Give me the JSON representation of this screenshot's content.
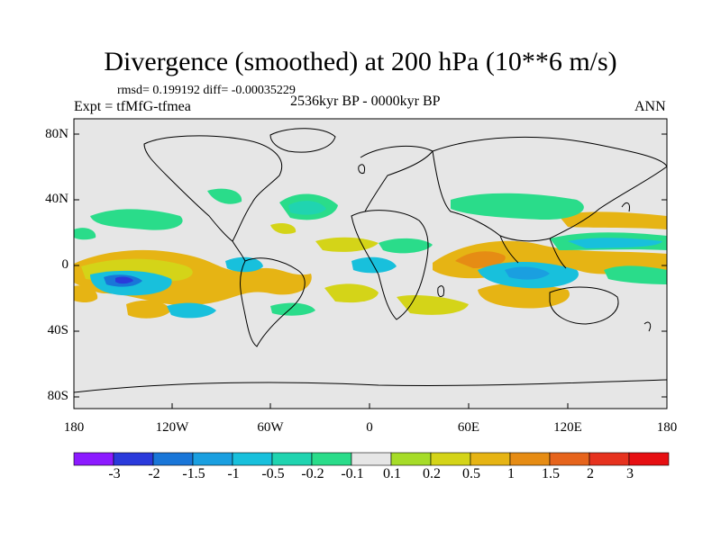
{
  "title": "Divergence (smoothed) at 200 hPa (10**6 m/s)",
  "stats": "rmsd= 0.199192 diff= -0.00035229",
  "experiment": "Expt = tfMfG-tfmea",
  "period": "2536kyr BP - 0000kyr BP",
  "season": "ANN",
  "lat_labels": [
    "80N",
    "40N",
    "0",
    "40S",
    "80S"
  ],
  "lon_labels": [
    "180",
    "120W",
    "60W",
    "0",
    "60E",
    "120E",
    "180"
  ],
  "colorbar": {
    "labels": [
      "-3",
      "-2",
      "-1.5",
      "-1",
      "-0.5",
      "-0.2",
      "-0.1",
      "0.1",
      "0.2",
      "0.5",
      "1",
      "1.5",
      "2",
      "3"
    ],
    "colors": [
      "#8c1aff",
      "#2a3adb",
      "#1976d8",
      "#1a9fe0",
      "#18c0dc",
      "#20d4b0",
      "#2adc8a",
      "#e6e6e6",
      "#a6dc28",
      "#d4d418",
      "#e6b414",
      "#e68c14",
      "#e6641c",
      "#e6321e",
      "#e60f12"
    ]
  },
  "map_colors": {
    "ocean_land_background": "#e6e6e6",
    "frame": "#000000",
    "coast": "#000000"
  }
}
